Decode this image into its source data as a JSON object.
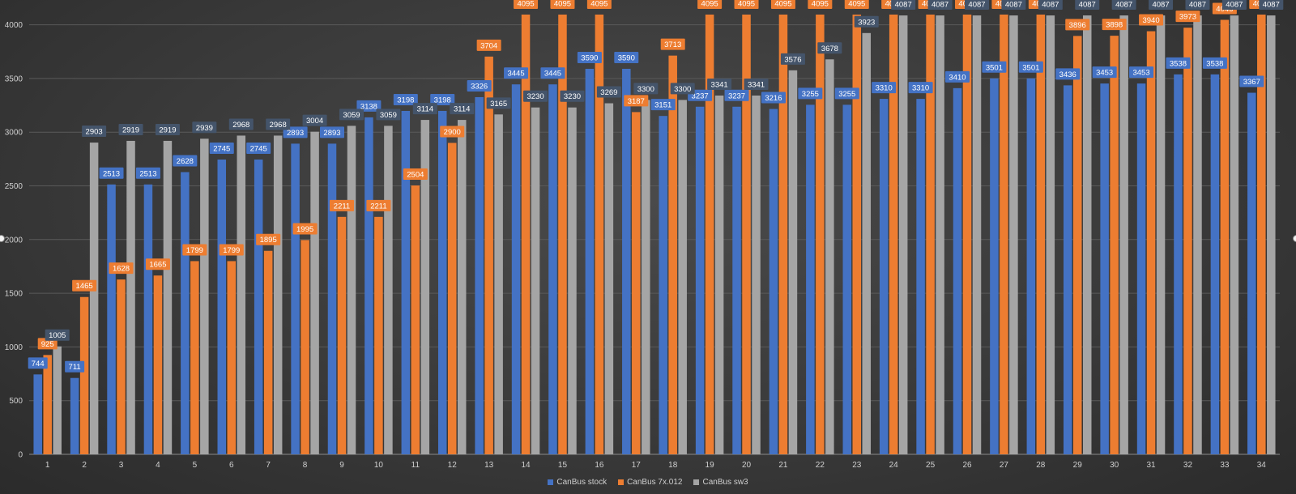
{
  "chart_data": {
    "type": "bar",
    "title": "",
    "xlabel": "",
    "ylabel": "",
    "ylim": [
      0,
      4095
    ],
    "yticks": [
      0,
      500,
      1000,
      1500,
      2000,
      2500,
      3000,
      3500,
      4000
    ],
    "grid": true,
    "legend_position": "bottom",
    "categories": [
      "1",
      "2",
      "3",
      "4",
      "5",
      "6",
      "7",
      "8",
      "9",
      "10",
      "11",
      "12",
      "13",
      "14",
      "15",
      "16",
      "17",
      "18",
      "19",
      "20",
      "21",
      "22",
      "23",
      "24",
      "25",
      "26",
      "27",
      "28",
      "29",
      "30",
      "31",
      "32",
      "33",
      "34"
    ],
    "series": [
      {
        "name": "CanBus stock",
        "color": "#4472C4",
        "label_color": "#4472C4",
        "values": [
          744,
          711,
          2513,
          2513,
          2628,
          2745,
          2745,
          2893,
          2893,
          3138,
          3198,
          3198,
          3326,
          3445,
          3445,
          3590,
          3590,
          3151,
          3237,
          3237,
          3216,
          3255,
          3255,
          3310,
          3310,
          3410,
          3501,
          3501,
          3436,
          3453,
          3453,
          3538,
          3538,
          3367
        ]
      },
      {
        "name": "CanBus 7x.012",
        "color": "#ED7D31",
        "label_color": "#ED7D31",
        "values": [
          925,
          1465,
          1628,
          1665,
          1799,
          1799,
          1895,
          1995,
          2211,
          2211,
          2504,
          2900,
          3704,
          4095,
          4095,
          4095,
          3187,
          3713,
          4095,
          4095,
          4095,
          4095,
          4095,
          4095,
          4095,
          4095,
          4095,
          4095,
          3896,
          3898,
          3940,
          3973,
          4046,
          4095
        ]
      },
      {
        "name": "CanBus sw3",
        "color": "#A5A5A5",
        "label_color": "#44546A",
        "values": [
          1005,
          2903,
          2919,
          2919,
          2939,
          2968,
          2968,
          3004,
          3059,
          3059,
          3114,
          3114,
          3165,
          3230,
          3230,
          3269,
          3300,
          3300,
          3341,
          3341,
          3576,
          3678,
          3923,
          4087,
          4087,
          4087,
          4087,
          4087,
          4087,
          4087,
          4087,
          4087,
          4087,
          4087
        ]
      }
    ]
  }
}
